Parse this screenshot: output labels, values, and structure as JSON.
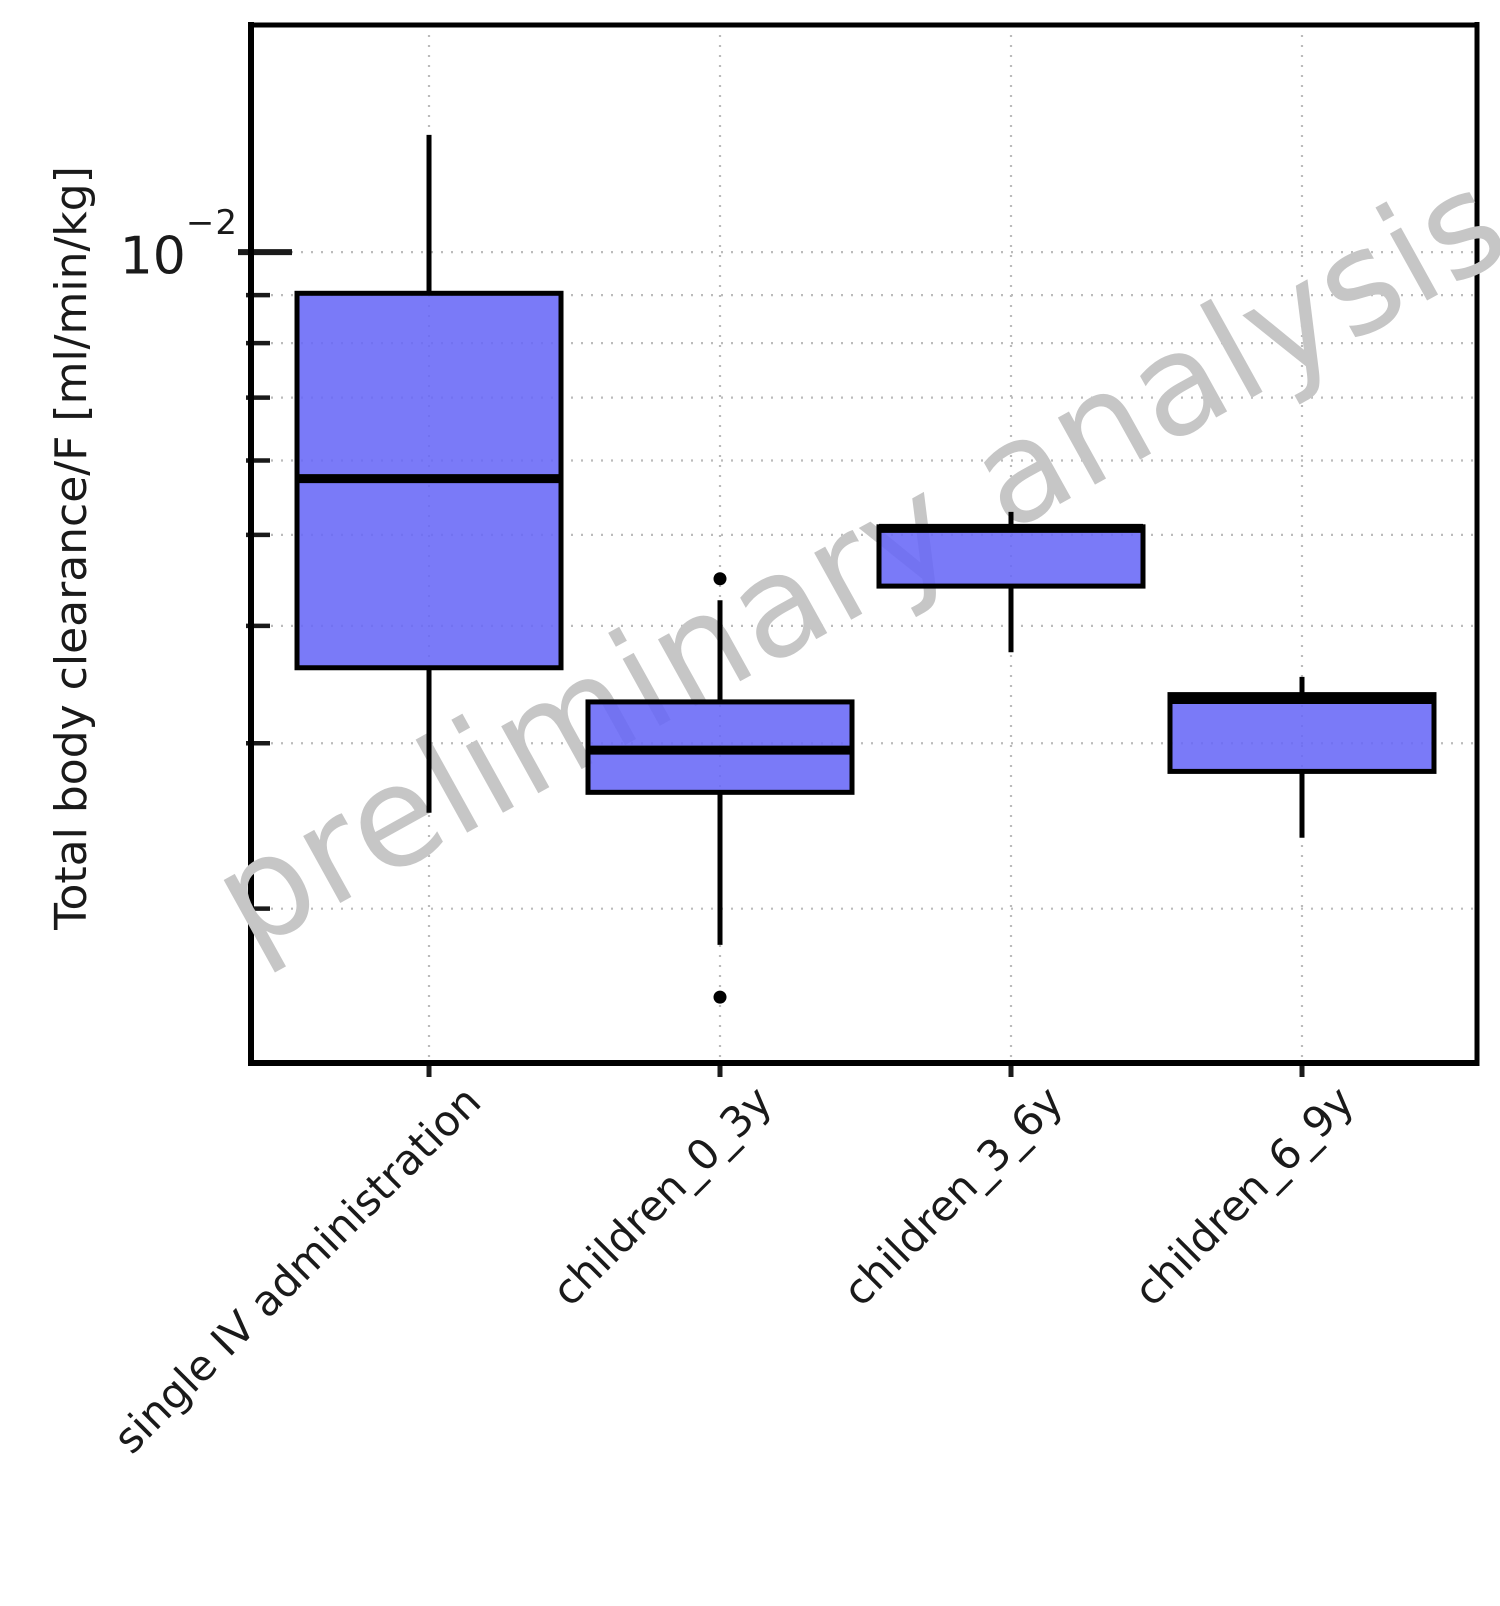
{
  "watermark": {
    "text": "preliminary analysis",
    "color": "#c6c6c6",
    "angle_deg": -29
  },
  "y_axis": {
    "label": "Total body clearance/F [ml/min/kg]",
    "major_tick": {
      "base": "10",
      "exponent": "−2",
      "value": 0.01
    },
    "minor_tick_values": [
      0.009,
      0.008,
      0.007,
      0.006,
      0.005,
      0.004,
      0.003,
      0.002
    ]
  },
  "x_axis": {
    "categories": [
      "single IV administration",
      "children_0_3y",
      "children_3_6y",
      "children_6_9y"
    ]
  },
  "chart_data": {
    "type": "box",
    "title": "",
    "xlabel": "",
    "ylabel": "Total body clearance/F [ml/min/kg]",
    "y_scale": "log",
    "ylim": [
      0.00137,
      0.01745
    ],
    "grid": "dotted, horizontal at major+minor log ticks, vertical at categories",
    "legend": "none",
    "categories": [
      "single IV administration",
      "children_0_3y",
      "children_3_6y",
      "children_6_9y"
    ],
    "series": [
      {
        "name": "single IV administration",
        "whisker_low": 0.00253,
        "q1": 0.00361,
        "median": 0.00574,
        "q3": 0.00904,
        "whisker_high": 0.01333,
        "outliers": []
      },
      {
        "name": "children_0_3y",
        "whisker_low": 0.00183,
        "q1": 0.00266,
        "median": 0.00295,
        "q3": 0.00332,
        "whisker_high": 0.00426,
        "outliers": [
          0.00449,
          0.00161
        ]
      },
      {
        "name": "children_3_6y",
        "whisker_low": 0.00375,
        "q1": 0.00441,
        "median": 0.00508,
        "q3": 0.0051,
        "whisker_high": 0.00529,
        "outliers": []
      },
      {
        "name": "children_6_9y",
        "whisker_low": 0.00238,
        "q1": 0.0028,
        "median": 0.00334,
        "q3": 0.00338,
        "whisker_high": 0.00353,
        "outliers": []
      }
    ]
  },
  "style": {
    "box_fill": "#6868f7",
    "box_fill_opacity": 0.88,
    "box_edge_color": "#000000",
    "median_color": "#000000",
    "whisker_color": "#000000",
    "outlier_color": "#000000",
    "grid_color": "#bbbbbb",
    "tick_color": "#1a1a1a",
    "spine_color": "#000000"
  }
}
